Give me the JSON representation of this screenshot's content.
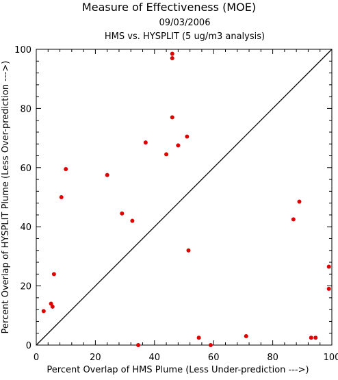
{
  "chart_data": {
    "type": "scatter",
    "title": "Measure of Effectiveness (MOE)",
    "subtitle_date": "09/03/2006",
    "subtitle_analysis": "HMS vs. HYSPLIT  (5 ug/m3 analysis)",
    "xlabel": "Percent Overlap of HMS Plume (Less Under-prediction --->)",
    "ylabel": "Percent Overlap of HYSPLIT Plume (Less Over-prediction --->)",
    "xlim": [
      0,
      100
    ],
    "ylim": [
      0,
      100
    ],
    "xticks": [
      "0",
      "20",
      "40",
      "60",
      "80",
      "100"
    ],
    "yticks": [
      "0",
      "20",
      "40",
      "60",
      "80",
      "100"
    ],
    "reference_line": "diagonal y = x",
    "point_color": "#e00000",
    "points": [
      {
        "x": 2.5,
        "y": 11.5
      },
      {
        "x": 5.0,
        "y": 14.0
      },
      {
        "x": 5.5,
        "y": 13.0
      },
      {
        "x": 6.0,
        "y": 24.0
      },
      {
        "x": 8.5,
        "y": 50.0
      },
      {
        "x": 10.0,
        "y": 59.5
      },
      {
        "x": 24.0,
        "y": 57.5
      },
      {
        "x": 29.0,
        "y": 44.5
      },
      {
        "x": 32.5,
        "y": 42.0
      },
      {
        "x": 34.5,
        "y": 0.0
      },
      {
        "x": 37.0,
        "y": 68.5
      },
      {
        "x": 44.0,
        "y": 64.5
      },
      {
        "x": 46.0,
        "y": 98.5
      },
      {
        "x": 46.0,
        "y": 97.0
      },
      {
        "x": 46.0,
        "y": 77.0
      },
      {
        "x": 48.0,
        "y": 67.5
      },
      {
        "x": 51.0,
        "y": 70.5
      },
      {
        "x": 51.5,
        "y": 32.0
      },
      {
        "x": 55.0,
        "y": 2.5
      },
      {
        "x": 59.0,
        "y": 0.0
      },
      {
        "x": 71.0,
        "y": 3.0
      },
      {
        "x": 87.0,
        "y": 42.5
      },
      {
        "x": 89.0,
        "y": 48.5
      },
      {
        "x": 93.0,
        "y": 2.5
      },
      {
        "x": 94.5,
        "y": 2.5
      },
      {
        "x": 99.0,
        "y": 26.5
      },
      {
        "x": 99.0,
        "y": 19.0
      }
    ]
  }
}
